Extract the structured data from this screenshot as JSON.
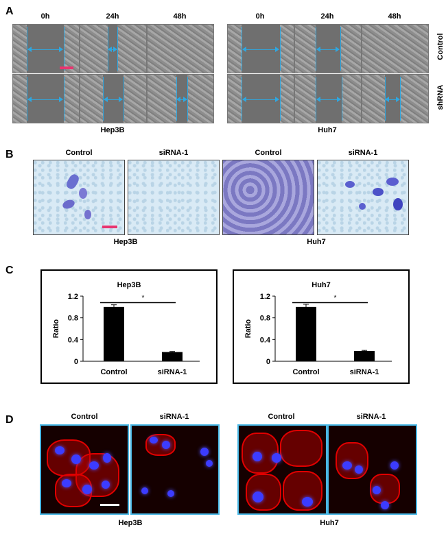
{
  "panel_a": {
    "label": "A",
    "time_labels": [
      "0h",
      "24h",
      "48h"
    ],
    "row_labels": [
      "Control",
      "shRNA"
    ],
    "cell_lines": [
      "Hep3B",
      "Huh7"
    ]
  },
  "panel_b": {
    "label": "B",
    "image_labels": [
      "Control",
      "siRNA-1",
      "Control",
      "siRNA-1"
    ],
    "cell_lines": [
      "Hep3B",
      "Huh7"
    ]
  },
  "panel_c": {
    "label": "C"
  },
  "panel_d": {
    "label": "D",
    "image_labels": [
      "Control",
      "siRNA-1",
      "Control",
      "siRNA-1"
    ],
    "cell_lines": [
      "Hep3B",
      "Huh7"
    ]
  },
  "chart_data": [
    {
      "type": "bar",
      "title": "Hep3B",
      "categories": [
        "Control",
        "siRNA-1"
      ],
      "values": [
        1.0,
        0.17
      ],
      "errors": [
        0.04,
        0.01
      ],
      "ylabel": "Ratio",
      "ylim": [
        0,
        1.2
      ],
      "yticks": [
        "0",
        "0.4",
        "0.8",
        "1.2"
      ],
      "significance": "*",
      "bar_color": "#000000"
    },
    {
      "type": "bar",
      "title": "Huh7",
      "categories": [
        "Control",
        "siRNA-1"
      ],
      "values": [
        1.0,
        0.19
      ],
      "errors": [
        0.05,
        0.01
      ],
      "ylabel": "Ratio",
      "ylim": [
        0,
        1.2
      ],
      "yticks": [
        "0",
        "0.4",
        "0.8",
        "1.2"
      ],
      "significance": "*",
      "bar_color": "#000000"
    }
  ]
}
